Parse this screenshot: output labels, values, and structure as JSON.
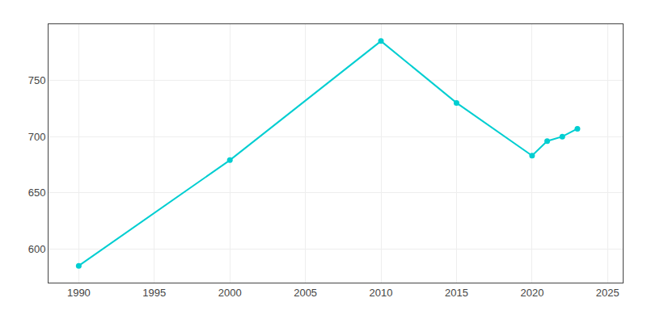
{
  "chart_data": {
    "type": "line",
    "x": [
      1990,
      2000,
      2010,
      2015,
      2020,
      2021,
      2022,
      2023
    ],
    "values": [
      585,
      679,
      785,
      730,
      683,
      696,
      700,
      707
    ],
    "color": "#00CED1",
    "marker": "circle",
    "xlim": [
      1988,
      2026
    ],
    "ylim": [
      570,
      800
    ],
    "xticks": [
      1990,
      1995,
      2000,
      2005,
      2010,
      2015,
      2020,
      2025
    ],
    "yticks": [
      600,
      650,
      700,
      750
    ],
    "grid": true
  }
}
